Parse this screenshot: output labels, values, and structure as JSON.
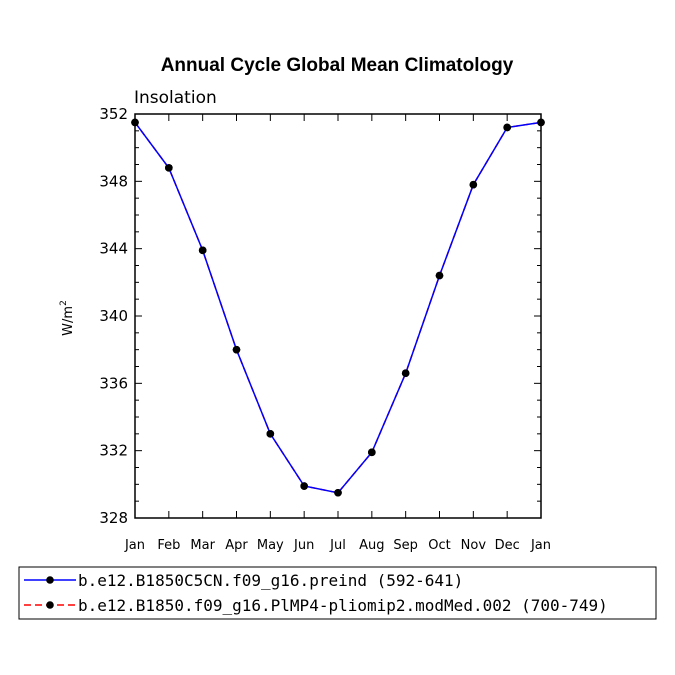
{
  "chart_data": {
    "type": "line",
    "title": "Annual Cycle Global Mean Climatology",
    "subtitle": "Insolation",
    "ylabel_base": "W/m",
    "ylabel_sup": "2",
    "xlabel": "",
    "categories": [
      "Jan",
      "Feb",
      "Mar",
      "Apr",
      "May",
      "Jun",
      "Jul",
      "Aug",
      "Sep",
      "Oct",
      "Nov",
      "Dec",
      "Jan"
    ],
    "ylim": [
      328,
      352
    ],
    "yticks": [
      328,
      332,
      336,
      340,
      344,
      348,
      352
    ],
    "series": [
      {
        "name": "b.e12.B1850C5CN.f09_g16.preind (592-641)",
        "color": "#0000ff",
        "dash": "solid",
        "values": [
          351.5,
          348.8,
          343.9,
          338.0,
          333.0,
          329.9,
          329.5,
          331.9,
          336.6,
          342.4,
          347.8,
          351.2,
          351.5
        ]
      },
      {
        "name": "b.e12.B1850.f09_g16.PlMP4-pliomip2.modMed.002 (700-749)",
        "color": "#ff0000",
        "dash": "dashed",
        "values": [
          351.5,
          348.8,
          343.9,
          338.0,
          333.0,
          329.9,
          329.5,
          331.9,
          336.6,
          342.4,
          347.8,
          351.2,
          351.5
        ]
      }
    ],
    "marker_color": "#000000",
    "legend_position": "bottom"
  }
}
